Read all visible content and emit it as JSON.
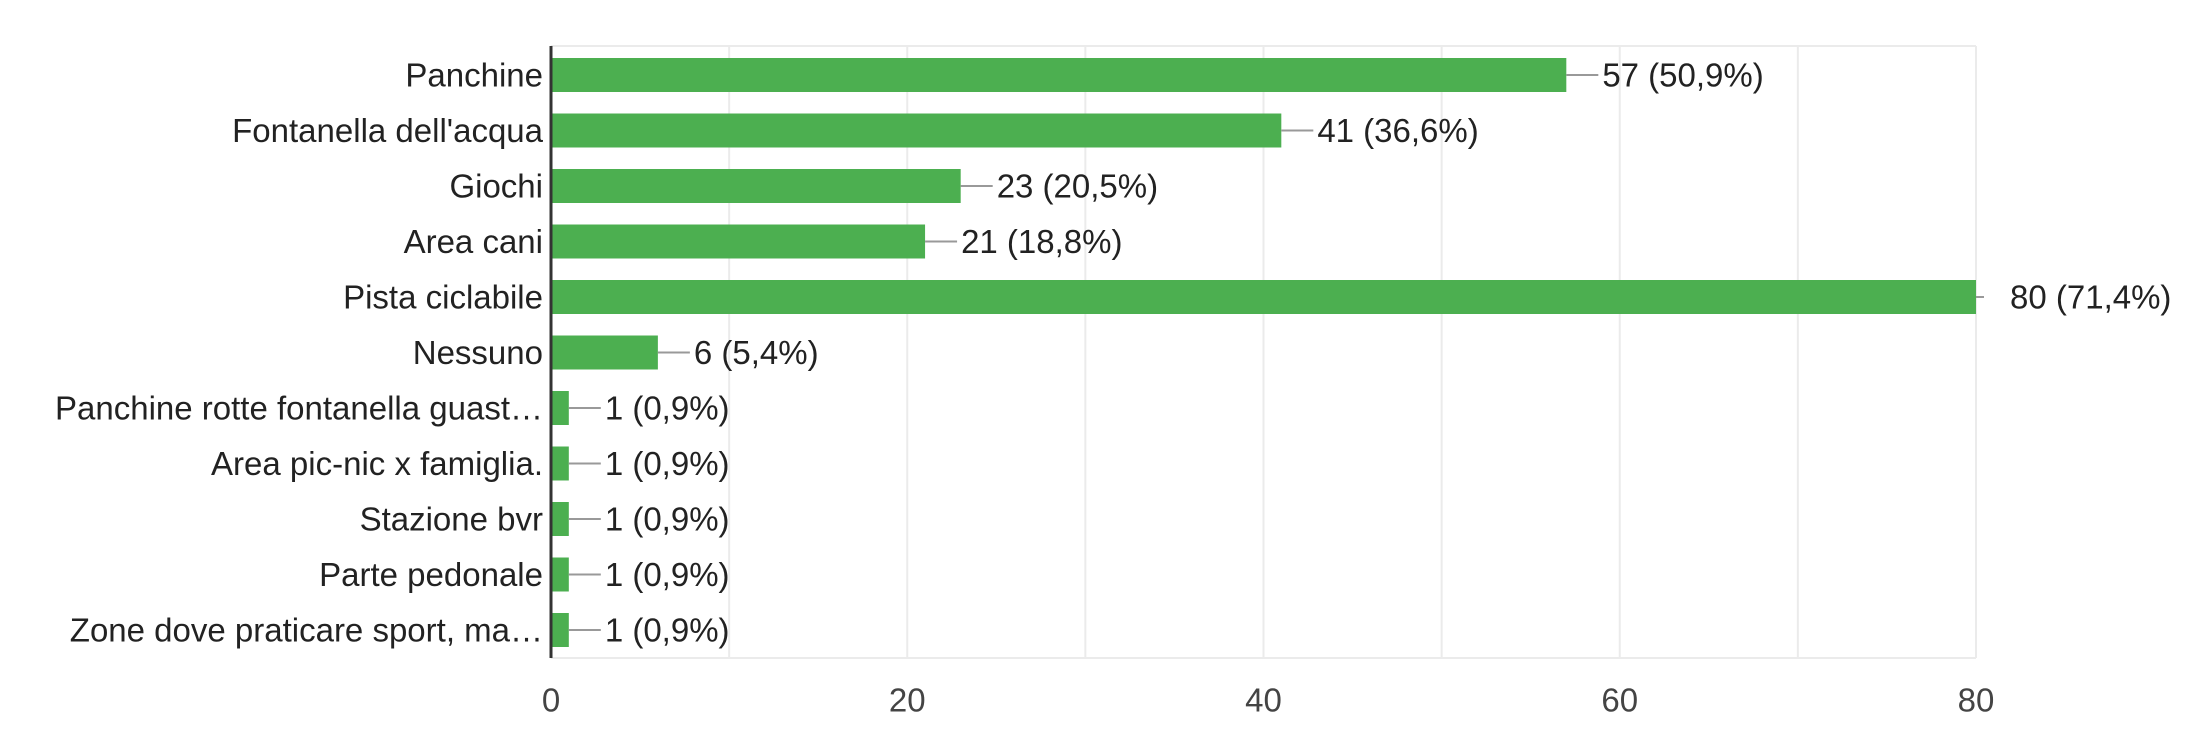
{
  "chart_data": {
    "type": "bar",
    "orientation": "horizontal",
    "categories": [
      "Panchine",
      "Fontanella dell'acqua",
      "Giochi",
      "Area cani",
      "Pista ciclabile",
      "Nessuno",
      "Panchine rotte fontanella guast…",
      "Area pic-nic x famiglia.",
      "Stazione bvr",
      "Parte pedonale",
      "Zone dove praticare sport, ma…"
    ],
    "values": [
      57,
      41,
      23,
      21,
      80,
      6,
      1,
      1,
      1,
      1,
      1
    ],
    "value_labels": [
      "57 (50,9%)",
      "41 (36,6%)",
      "23 (20,5%)",
      "21 (18,8%)",
      "80 (71,4%)",
      "6 (5,4%)",
      "1 (0,9%)",
      "1 (0,9%)",
      "1 (0,9%)",
      "1 (0,9%)",
      "1 (0,9%)"
    ],
    "xlim": [
      0,
      80
    ],
    "x_ticks": [
      0,
      20,
      40,
      60,
      80
    ],
    "x_tick_labels": [
      "0",
      "20",
      "40",
      "60",
      "80"
    ],
    "grid": true,
    "bar_color": "#4caf50",
    "title": "",
    "xlabel": "",
    "ylabel": ""
  }
}
